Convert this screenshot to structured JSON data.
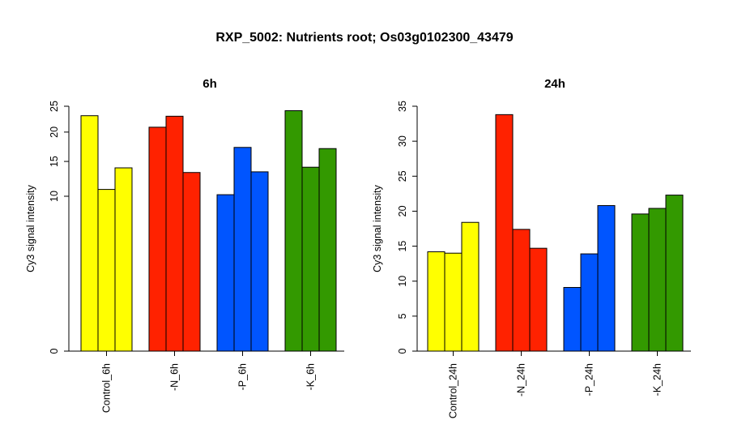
{
  "title": "RXP_5002: Nutrients root; Os03g0102300_43479",
  "colors": {
    "control": "#ffff00",
    "N": "#ff2200",
    "P": "#0055ff",
    "K": "#339900"
  },
  "chart_data": [
    {
      "type": "bar",
      "title": "6h",
      "ylabel": "Cy3 signal intensity",
      "ylim": [
        0,
        25
      ],
      "yticks": [
        0,
        10,
        15,
        20,
        25
      ],
      "scale": "sqrt",
      "groups": [
        {
          "label": "Control_6h",
          "color_key": "control",
          "values": [
            23.1,
            10.9,
            14.0
          ]
        },
        {
          "label": "-N_6h",
          "color_key": "N",
          "values": [
            20.9,
            23.0,
            13.3
          ]
        },
        {
          "label": "-P_6h",
          "color_key": "P",
          "values": [
            10.2,
            17.3,
            13.4
          ]
        },
        {
          "label": "-K_6h",
          "color_key": "K",
          "values": [
            24.1,
            14.1,
            17.1
          ]
        }
      ]
    },
    {
      "type": "bar",
      "title": "24h",
      "ylabel": "Cy3 signal intensity",
      "ylim": [
        0,
        35
      ],
      "yticks": [
        0,
        5,
        10,
        15,
        20,
        25,
        30,
        35
      ],
      "scale": "linear",
      "groups": [
        {
          "label": "Control_24h",
          "color_key": "control",
          "values": [
            14.2,
            14.0,
            18.4
          ]
        },
        {
          "label": "-N_24h",
          "color_key": "N",
          "values": [
            33.8,
            17.4,
            14.7
          ]
        },
        {
          "label": "-P_24h",
          "color_key": "P",
          "values": [
            9.1,
            13.9,
            20.8
          ]
        },
        {
          "label": "-K_24h",
          "color_key": "K",
          "values": [
            19.6,
            20.4,
            22.3
          ]
        }
      ]
    }
  ]
}
